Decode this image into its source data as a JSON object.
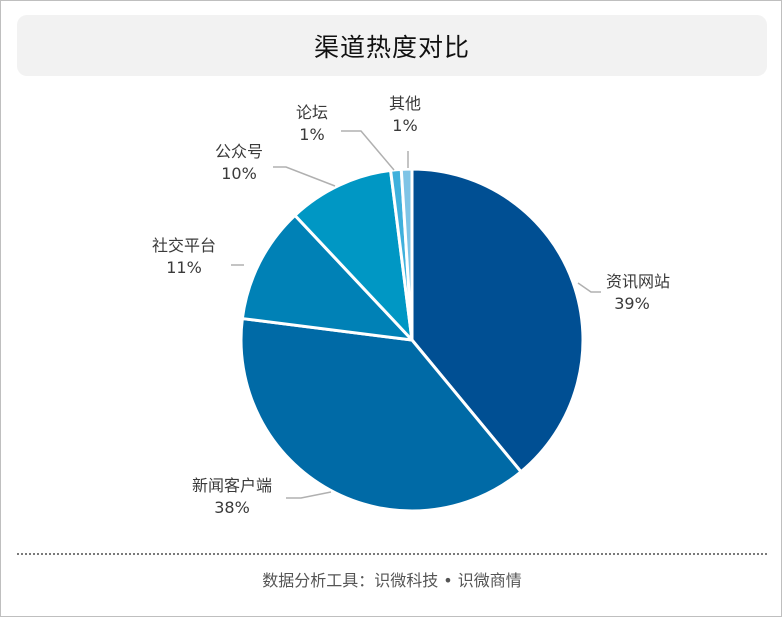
{
  "title": "渠道热度对比",
  "footer": "数据分析工具：识微科技 • 识微商情",
  "colors": {
    "slice_border": "#ffffff",
    "leader_line": "#b0b0b0"
  },
  "chart_data": {
    "type": "pie",
    "start_angle_deg": 0,
    "direction": "clockwise",
    "slices": [
      {
        "label": "资讯网站",
        "value": 39,
        "value_label": "39%",
        "color": "#004f93"
      },
      {
        "label": "新闻客户端",
        "value": 38,
        "value_label": "38%",
        "color": "#006aa6"
      },
      {
        "label": "社交平台",
        "value": 11,
        "value_label": "11%",
        "color": "#0081b6"
      },
      {
        "label": "公众号",
        "value": 10,
        "value_label": "10%",
        "color": "#0097c4"
      },
      {
        "label": "论坛",
        "value": 1,
        "value_label": "1%",
        "color": "#3fb0dc"
      },
      {
        "label": "其他",
        "value": 1,
        "value_label": "1%",
        "color": "#7fc4e6"
      }
    ]
  }
}
